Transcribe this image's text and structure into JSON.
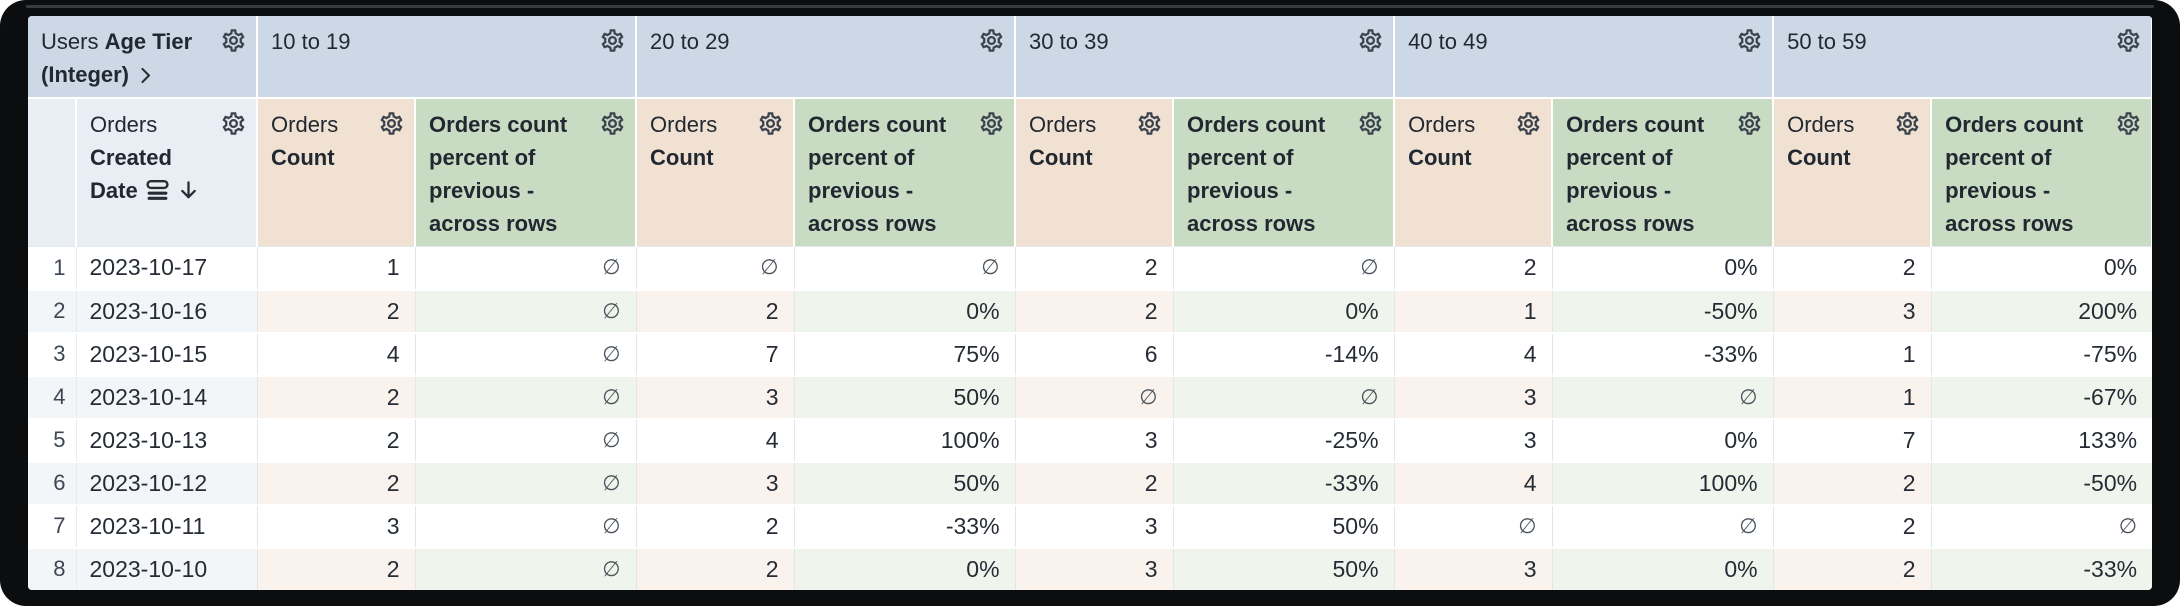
{
  "table": {
    "row_dimension": {
      "view": "Users",
      "field": "Age Tier (Integer)"
    },
    "date_column": {
      "view": "Orders",
      "field": "Created Date"
    },
    "pivots": [
      "10 to 19",
      "20 to 29",
      "30 to 39",
      "40 to 49",
      "50 to 59"
    ],
    "measures": {
      "count": {
        "view": "Orders",
        "field": "Count"
      },
      "percent": "Orders count percent of previous - across rows"
    },
    "null_symbol": "∅",
    "sort": {
      "column": "Orders Created Date",
      "direction": "descending"
    },
    "rows": [
      {
        "index": "1",
        "date": "2023-10-17",
        "cells": [
          [
            "1",
            "∅"
          ],
          [
            "∅",
            "∅"
          ],
          [
            "2",
            "∅"
          ],
          [
            "2",
            "0%"
          ],
          [
            "2",
            "0%"
          ]
        ]
      },
      {
        "index": "2",
        "date": "2023-10-16",
        "cells": [
          [
            "2",
            "∅"
          ],
          [
            "2",
            "0%"
          ],
          [
            "2",
            "0%"
          ],
          [
            "1",
            "-50%"
          ],
          [
            "3",
            "200%"
          ]
        ]
      },
      {
        "index": "3",
        "date": "2023-10-15",
        "cells": [
          [
            "4",
            "∅"
          ],
          [
            "7",
            "75%"
          ],
          [
            "6",
            "-14%"
          ],
          [
            "4",
            "-33%"
          ],
          [
            "1",
            "-75%"
          ]
        ]
      },
      {
        "index": "4",
        "date": "2023-10-14",
        "cells": [
          [
            "2",
            "∅"
          ],
          [
            "3",
            "50%"
          ],
          [
            "∅",
            "∅"
          ],
          [
            "3",
            "∅"
          ],
          [
            "1",
            "-67%"
          ]
        ]
      },
      {
        "index": "5",
        "date": "2023-10-13",
        "cells": [
          [
            "2",
            "∅"
          ],
          [
            "4",
            "100%"
          ],
          [
            "3",
            "-25%"
          ],
          [
            "3",
            "0%"
          ],
          [
            "7",
            "133%"
          ]
        ]
      },
      {
        "index": "6",
        "date": "2023-10-12",
        "cells": [
          [
            "2",
            "∅"
          ],
          [
            "3",
            "50%"
          ],
          [
            "2",
            "-33%"
          ],
          [
            "4",
            "100%"
          ],
          [
            "2",
            "-50%"
          ]
        ]
      },
      {
        "index": "7",
        "date": "2023-10-11",
        "cells": [
          [
            "3",
            "∅"
          ],
          [
            "2",
            "-33%"
          ],
          [
            "3",
            "50%"
          ],
          [
            "∅",
            "∅"
          ],
          [
            "2",
            "∅"
          ]
        ]
      },
      {
        "index": "8",
        "date": "2023-10-10",
        "cells": [
          [
            "2",
            "∅"
          ],
          [
            "2",
            "0%"
          ],
          [
            "3",
            "50%"
          ],
          [
            "3",
            "0%"
          ],
          [
            "2",
            "-33%"
          ]
        ]
      }
    ],
    "icons": {
      "settings": "gear-icon",
      "chevron": "chevron-right-icon",
      "section": "section-icon",
      "sort_descending": "arrow-down-icon"
    },
    "colors": {
      "pivot_header_bg": "#cdd8e6",
      "dimension_header_bg": "#e9eef5",
      "count_header_bg": "#f0e1d2",
      "percent_header_bg": "#c8dcc3",
      "even_row_dimension_bg": "#f2f6f9",
      "even_row_count_bg": "#faf2ec",
      "even_row_percent_bg": "#eff5ec",
      "text": "#262c35",
      "frame_bg": "#0c0d0e"
    }
  }
}
